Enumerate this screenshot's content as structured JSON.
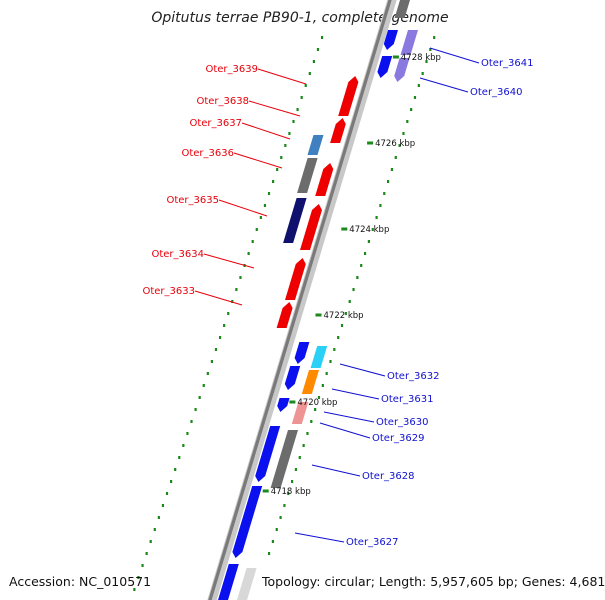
{
  "title": "Opitutus terrae PB90-1, complete genome",
  "footer": {
    "accession": "Accession: NC_010571",
    "summary": "Topology: circular; Length: 5,957,605 bp; Genes: 4,681"
  },
  "scale_labels": [
    "4728 kbp",
    "4726 kbp",
    "4724 kbp",
    "4722 kbp",
    "4720 kbp",
    "4718 kbp"
  ],
  "gene_labels_left": [
    "Oter_3639",
    "Oter_3638",
    "Oter_3637",
    "Oter_3636",
    "Oter_3635",
    "Oter_3634",
    "Oter_3633"
  ],
  "gene_labels_right": [
    "Oter_3641",
    "Oter_3640",
    "Oter_3632",
    "Oter_3631",
    "Oter_3630",
    "Oter_3629",
    "Oter_3628",
    "Oter_3627"
  ],
  "colors": {
    "left_label": "#e8000b",
    "right_label": "#1010d0",
    "backbone": "#888888",
    "gc_dots": "#1b8a1b",
    "red_gene": "#ee0000",
    "blue_gene": "#0a10ee",
    "navy_gene": "#10106e",
    "gray_gene": "#6c6c6c",
    "steel_gene": "#3f80c0",
    "cyan_gene": "#2ad0f5",
    "orange_gene": "#ff8a00",
    "pink_gene": "#ef9494",
    "lavender_gene": "#8a7ae0"
  }
}
